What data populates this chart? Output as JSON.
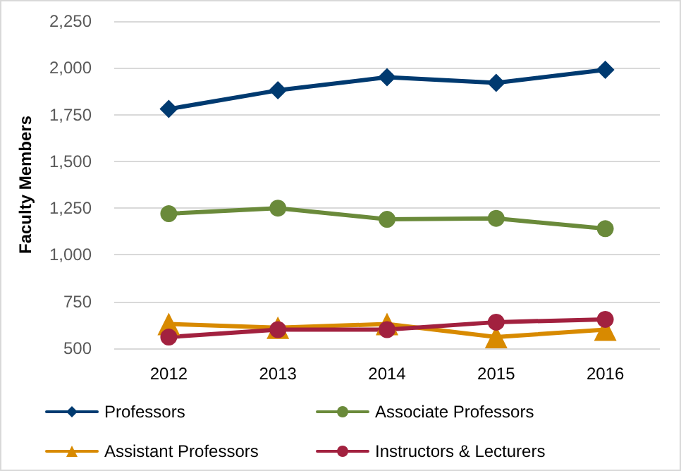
{
  "chart_data": {
    "type": "line",
    "ylabel": "Faculty Members",
    "categories": [
      "2012",
      "2013",
      "2014",
      "2015",
      "2016"
    ],
    "series": [
      {
        "name": "Professors",
        "color": "#003a70",
        "marker": "diamond",
        "values": [
          1780,
          1880,
          1950,
          1920,
          1990
        ]
      },
      {
        "name": "Associate Professors",
        "color": "#6a8a3a",
        "marker": "circle",
        "values": [
          1220,
          1250,
          1190,
          1195,
          1140
        ]
      },
      {
        "name": "Assistant Professors",
        "color": "#d88a00",
        "marker": "triangle",
        "values": [
          630,
          610,
          630,
          560,
          600
        ]
      },
      {
        "name": "Instructors & Lecturers",
        "color": "#a2213f",
        "marker": "circle",
        "values": [
          560,
          600,
          600,
          640,
          655
        ]
      }
    ],
    "ylim": [
      500,
      2250
    ],
    "yticks": [
      500,
      750,
      {
        "value": 1000,
        "label": "1,000"
      },
      {
        "value": 1250,
        "label": "1,250"
      },
      {
        "value": 1500,
        "label": "1,500"
      },
      {
        "value": 1750,
        "label": "1,750"
      },
      {
        "value": 2000,
        "label": "2,000"
      },
      {
        "value": 2250,
        "label": "2,250"
      }
    ],
    "grid": "y",
    "legend": "bottom",
    "line_style": "solid"
  }
}
